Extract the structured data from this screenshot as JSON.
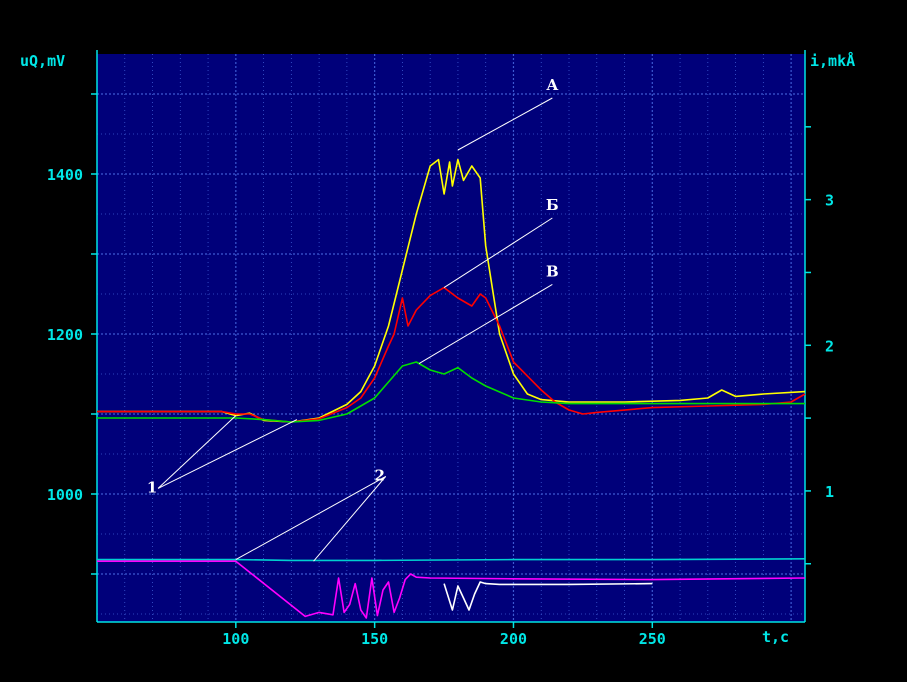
{
  "chart_data": {
    "type": "line",
    "xlabel": "t,c",
    "ylabel_left": "uQ,mV",
    "ylabel_right": "i,mkÅ",
    "xlim": [
      50,
      305
    ],
    "ylim_left": [
      840,
      1550
    ],
    "ylim_right": [
      0.1,
      4.0
    ],
    "grid": true,
    "x_ticks": [
      100,
      150,
      200,
      250
    ],
    "y_left_ticks": [
      1000,
      1200,
      1400
    ],
    "y_right_ticks": [
      1,
      2,
      3
    ],
    "colors": {
      "background": "#000000",
      "plot_area": "#00007a",
      "grid": "#3c5ad2",
      "frame": "#00e6e6",
      "text": "#00e6e6",
      "annotation": "#ffffff"
    },
    "series": [
      {
        "color": "#ffff00",
        "axis": "left",
        "x": [
          50,
          80,
          95,
          100,
          105,
          110,
          120,
          130,
          140,
          145,
          150,
          155,
          160,
          165,
          170,
          173,
          175,
          177,
          178,
          180,
          182,
          185,
          188,
          190,
          195,
          200,
          205,
          210,
          220,
          240,
          260,
          270,
          275,
          280,
          290,
          305
        ],
        "y": [
          1103,
          1103,
          1103,
          1098,
          1101,
          1092,
          1090,
          1095,
          1112,
          1128,
          1160,
          1210,
          1280,
          1350,
          1410,
          1418,
          1375,
          1415,
          1385,
          1418,
          1392,
          1410,
          1395,
          1310,
          1200,
          1150,
          1125,
          1118,
          1115,
          1115,
          1117,
          1120,
          1130,
          1122,
          1125,
          1128
        ]
      },
      {
        "color": "#ff0000",
        "axis": "left",
        "x": [
          50,
          80,
          95,
          100,
          105,
          110,
          120,
          130,
          140,
          145,
          150,
          155,
          157,
          160,
          162,
          165,
          170,
          175,
          180,
          185,
          188,
          190,
          195,
          200,
          210,
          215,
          220,
          225,
          230,
          250,
          270,
          290,
          300,
          305
        ],
        "y": [
          1103,
          1103,
          1103,
          1100,
          1100,
          1093,
          1090,
          1094,
          1108,
          1120,
          1145,
          1185,
          1200,
          1245,
          1210,
          1230,
          1248,
          1258,
          1245,
          1235,
          1250,
          1245,
          1210,
          1165,
          1130,
          1115,
          1105,
          1100,
          1102,
          1108,
          1110,
          1112,
          1115,
          1125
        ]
      },
      {
        "color": "#00dd00",
        "axis": "left",
        "x": [
          50,
          90,
          100,
          110,
          120,
          130,
          140,
          150,
          155,
          160,
          165,
          170,
          175,
          180,
          185,
          190,
          200,
          210,
          220,
          250,
          280,
          305
        ],
        "y": [
          1095,
          1095,
          1095,
          1093,
          1090,
          1092,
          1100,
          1120,
          1140,
          1160,
          1165,
          1155,
          1150,
          1158,
          1145,
          1135,
          1120,
          1115,
          1113,
          1113,
          1113,
          1113
        ]
      },
      {
        "color": "#00d0d0",
        "axis": "left",
        "x": [
          50,
          100,
          120,
          150,
          200,
          250,
          305
        ],
        "y": [
          918,
          918,
          917,
          917,
          918,
          918,
          919
        ]
      },
      {
        "color": "#ff00ff",
        "axis": "left",
        "x": [
          50,
          100,
          125,
          130,
          135,
          137,
          139,
          141,
          143,
          145,
          147,
          149,
          151,
          153,
          155,
          157,
          159,
          161,
          163,
          165,
          170,
          200,
          250,
          305
        ],
        "y": [
          916,
          916,
          847,
          852,
          849,
          895,
          852,
          862,
          888,
          855,
          845,
          895,
          848,
          880,
          890,
          852,
          870,
          893,
          900,
          896,
          895,
          894,
          893,
          895
        ]
      },
      {
        "color": "#ffffff",
        "axis": "left",
        "x": [
          175,
          178,
          180,
          182,
          184,
          186,
          188,
          190,
          195,
          200,
          220,
          250
        ],
        "y": [
          888,
          855,
          885,
          870,
          855,
          875,
          890,
          888,
          887,
          887,
          887,
          888
        ]
      }
    ],
    "annotations": [
      {
        "label": "А",
        "x": 214,
        "y": 1495,
        "tx": 180,
        "ty": 1430
      },
      {
        "label": "Б",
        "x": 214,
        "y": 1345,
        "tx": 175,
        "ty": 1258
      },
      {
        "label": "В",
        "x": 214,
        "y": 1262,
        "tx": 166,
        "ty": 1163
      },
      {
        "label": "1",
        "x": 72,
        "y": 1007,
        "targets": [
          [
            100,
            1098
          ],
          [
            122,
            1093
          ]
        ]
      },
      {
        "label": "2",
        "x": 154,
        "y": 1022,
        "targets": [
          [
            100,
            918
          ],
          [
            128,
            916
          ]
        ]
      }
    ]
  }
}
